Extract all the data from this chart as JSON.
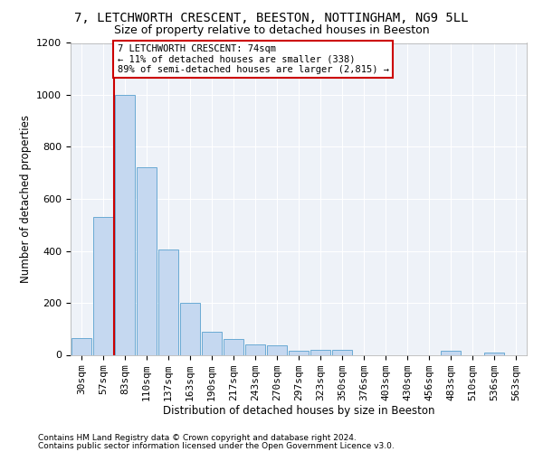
{
  "title1": "7, LETCHWORTH CRESCENT, BEESTON, NOTTINGHAM, NG9 5LL",
  "title2": "Size of property relative to detached houses in Beeston",
  "xlabel": "Distribution of detached houses by size in Beeston",
  "ylabel": "Number of detached properties",
  "categories": [
    "30sqm",
    "57sqm",
    "83sqm",
    "110sqm",
    "137sqm",
    "163sqm",
    "190sqm",
    "217sqm",
    "243sqm",
    "270sqm",
    "297sqm",
    "323sqm",
    "350sqm",
    "376sqm",
    "403sqm",
    "430sqm",
    "456sqm",
    "483sqm",
    "510sqm",
    "536sqm",
    "563sqm"
  ],
  "values": [
    65,
    530,
    1000,
    720,
    405,
    200,
    90,
    60,
    40,
    35,
    15,
    20,
    20,
    0,
    0,
    0,
    0,
    15,
    0,
    10,
    0
  ],
  "bar_color": "#c5d8f0",
  "bar_edgecolor": "#6aaad4",
  "annotation_text": "7 LETCHWORTH CRESCENT: 74sqm\n← 11% of detached houses are smaller (338)\n89% of semi-detached houses are larger (2,815) →",
  "annotation_box_color": "#ffffff",
  "annotation_edge_color": "#cc0000",
  "vline_color": "#cc0000",
  "vline_x": 1.5,
  "ylim": [
    0,
    1200
  ],
  "yticks": [
    0,
    200,
    400,
    600,
    800,
    1000,
    1200
  ],
  "footer1": "Contains HM Land Registry data © Crown copyright and database right 2024.",
  "footer2": "Contains public sector information licensed under the Open Government Licence v3.0.",
  "bg_color": "#ffffff",
  "plot_bg_color": "#eef2f8",
  "title1_fontsize": 10,
  "title2_fontsize": 9,
  "xlabel_fontsize": 8.5,
  "ylabel_fontsize": 8.5,
  "tick_fontsize": 8,
  "footer_fontsize": 6.5
}
